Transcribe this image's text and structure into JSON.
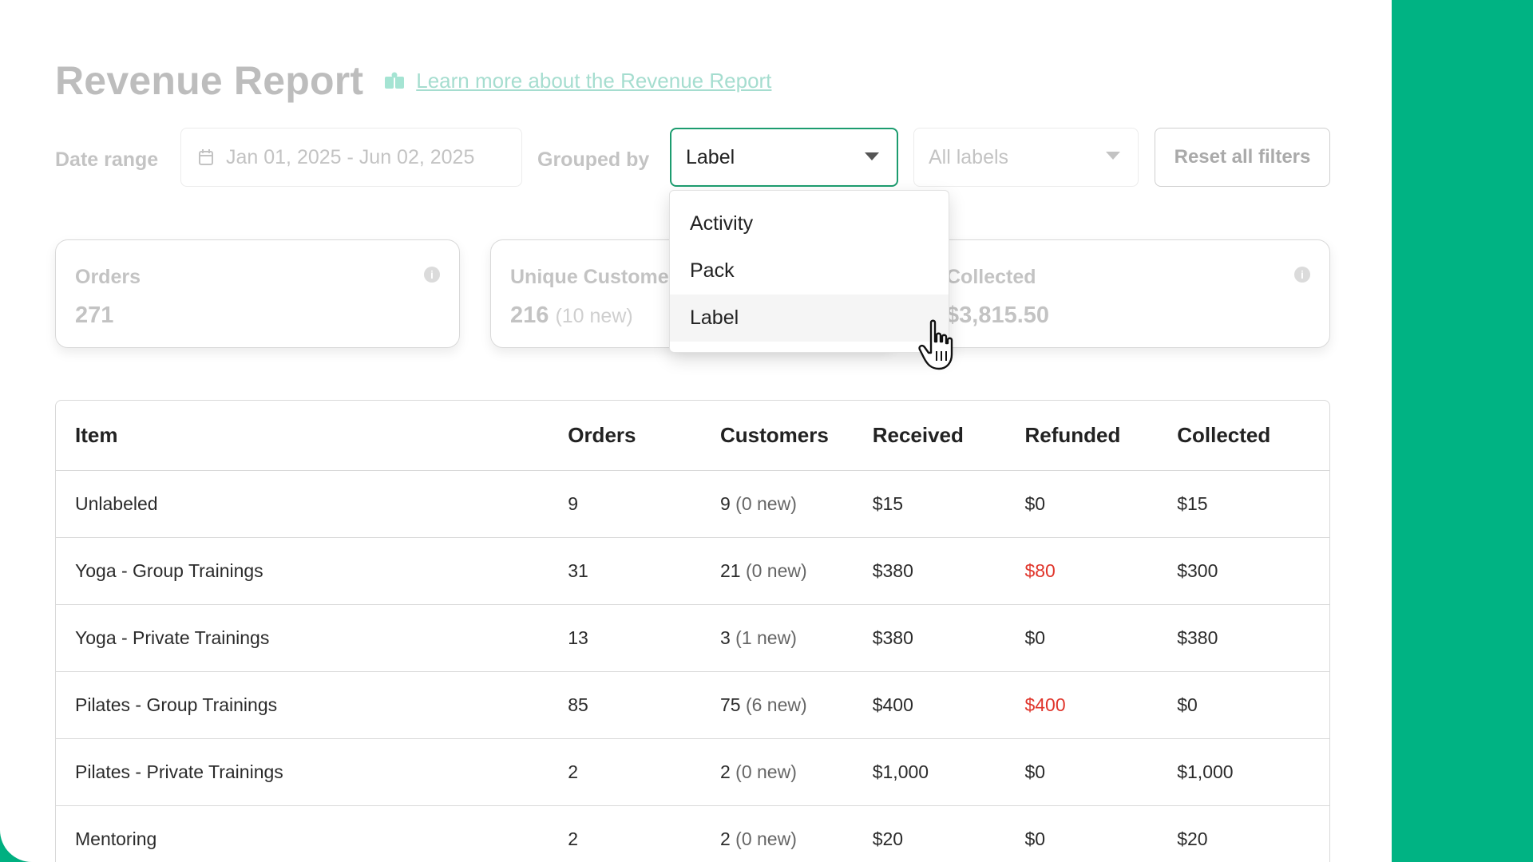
{
  "page": {
    "title": "Revenue Report",
    "learn_more": "Learn more about the Revenue Report"
  },
  "filters": {
    "date_range_label": "Date range",
    "date_range_value": "Jan 01, 2025 - Jun 02, 2025",
    "grouped_by_label": "Grouped by",
    "grouped_by_value": "Label",
    "labels_value": "All labels",
    "reset_label": "Reset all filters"
  },
  "dropdown": {
    "options": [
      "Activity",
      "Pack",
      "Label"
    ],
    "selected": "Label"
  },
  "cards": [
    {
      "label": "Orders",
      "value": "271",
      "sub": ""
    },
    {
      "label": "Unique Customers",
      "value": "216",
      "sub": "(10 new)"
    },
    {
      "label": "Collected",
      "value": "$3,815.50",
      "sub": ""
    }
  ],
  "table": {
    "headers": [
      "Item",
      "Orders",
      "Customers",
      "Received",
      "Refunded",
      "Collected"
    ],
    "rows": [
      {
        "item": "Unlabeled",
        "orders": "9",
        "customers": "9",
        "new": "(0 new)",
        "received": "$15",
        "refunded": "$0",
        "collected": "$15"
      },
      {
        "item": "Yoga - Group Trainings",
        "orders": "31",
        "customers": "21",
        "new": "(0 new)",
        "received": "$380",
        "refunded": "$80",
        "collected": "$300"
      },
      {
        "item": "Yoga - Private Trainings",
        "orders": "13",
        "customers": "3",
        "new": "(1 new)",
        "received": "$380",
        "refunded": "$0",
        "collected": "$380"
      },
      {
        "item": "Pilates - Group Trainings",
        "orders": "85",
        "customers": "75",
        "new": "(6 new)",
        "received": "$400",
        "refunded": "$400",
        "collected": "$0"
      },
      {
        "item": "Pilates - Private Trainings",
        "orders": "2",
        "customers": "2",
        "new": "(0 new)",
        "received": "$1,000",
        "refunded": "$0",
        "collected": "$1,000"
      },
      {
        "item": "Mentoring",
        "orders": "2",
        "customers": "2",
        "new": "(0 new)",
        "received": "$20",
        "refunded": "$0",
        "collected": "$20"
      }
    ]
  },
  "colors": {
    "accent": "#00b383",
    "negative": "#e0352b"
  }
}
